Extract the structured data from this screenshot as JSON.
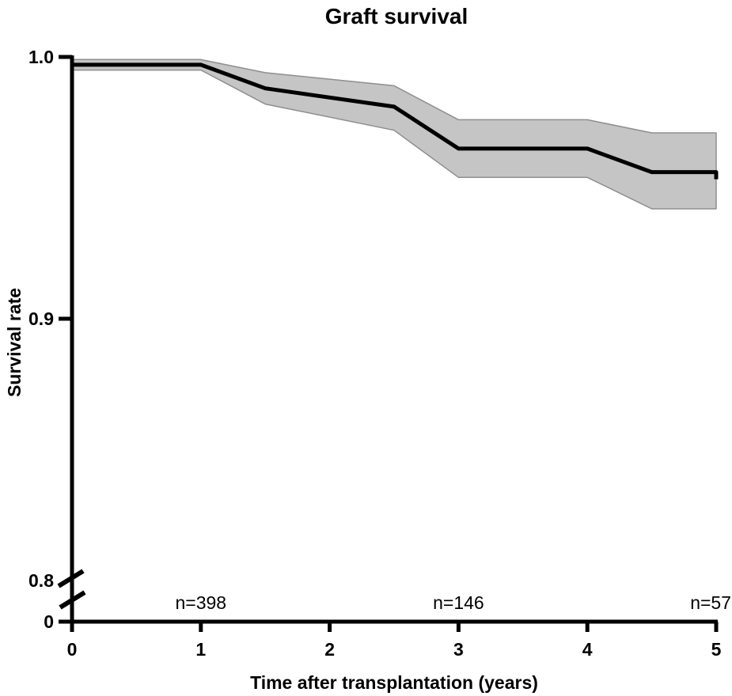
{
  "page": {
    "background": "#ffffff"
  },
  "chart_data": {
    "type": "line",
    "subtype": "kaplan-meier-survival-curve-with-confidence-band",
    "title": "Graft survival",
    "xlabel": "Time after transplantation (years)",
    "ylabel": "Survival rate",
    "x": [
      0,
      1,
      1.5,
      2.5,
      3,
      4,
      4.5,
      5
    ],
    "series": [
      {
        "name": "survival-estimate",
        "values": [
          0.997,
          0.997,
          0.988,
          0.981,
          0.965,
          0.965,
          0.956,
          0.956
        ]
      },
      {
        "name": "ci-upper",
        "values": [
          0.999,
          0.999,
          0.994,
          0.989,
          0.976,
          0.976,
          0.971,
          0.971
        ]
      },
      {
        "name": "ci-lower",
        "values": [
          0.995,
          0.995,
          0.982,
          0.972,
          0.954,
          0.954,
          0.942,
          0.942
        ]
      }
    ],
    "x_ticks": [
      "0",
      "1",
      "2",
      "3",
      "4",
      "5"
    ],
    "x_tick_values": [
      0,
      1,
      2,
      3,
      4,
      5
    ],
    "y_ticks": [
      "1.0",
      "0.9",
      "0.8",
      "0"
    ],
    "y_tick_values": [
      1.0,
      0.9,
      0.8,
      0
    ],
    "xlim": [
      0,
      5
    ],
    "ylim_shown": [
      0.8,
      1.0
    ],
    "y_axis_break": true,
    "grid": false,
    "legend": false,
    "at_risk_labels": [
      {
        "text": "n=398",
        "x": 1,
        "anchor": "middle"
      },
      {
        "text": "n=146",
        "x": 3,
        "anchor": "middle"
      },
      {
        "text": "n=57",
        "x": 5,
        "anchor": "end"
      }
    ],
    "colors": {
      "line": "#000000",
      "ci_fill": "#c5c5c5",
      "ci_edge": "#8e8e8e",
      "axis": "#000000",
      "text": "#000000"
    }
  }
}
